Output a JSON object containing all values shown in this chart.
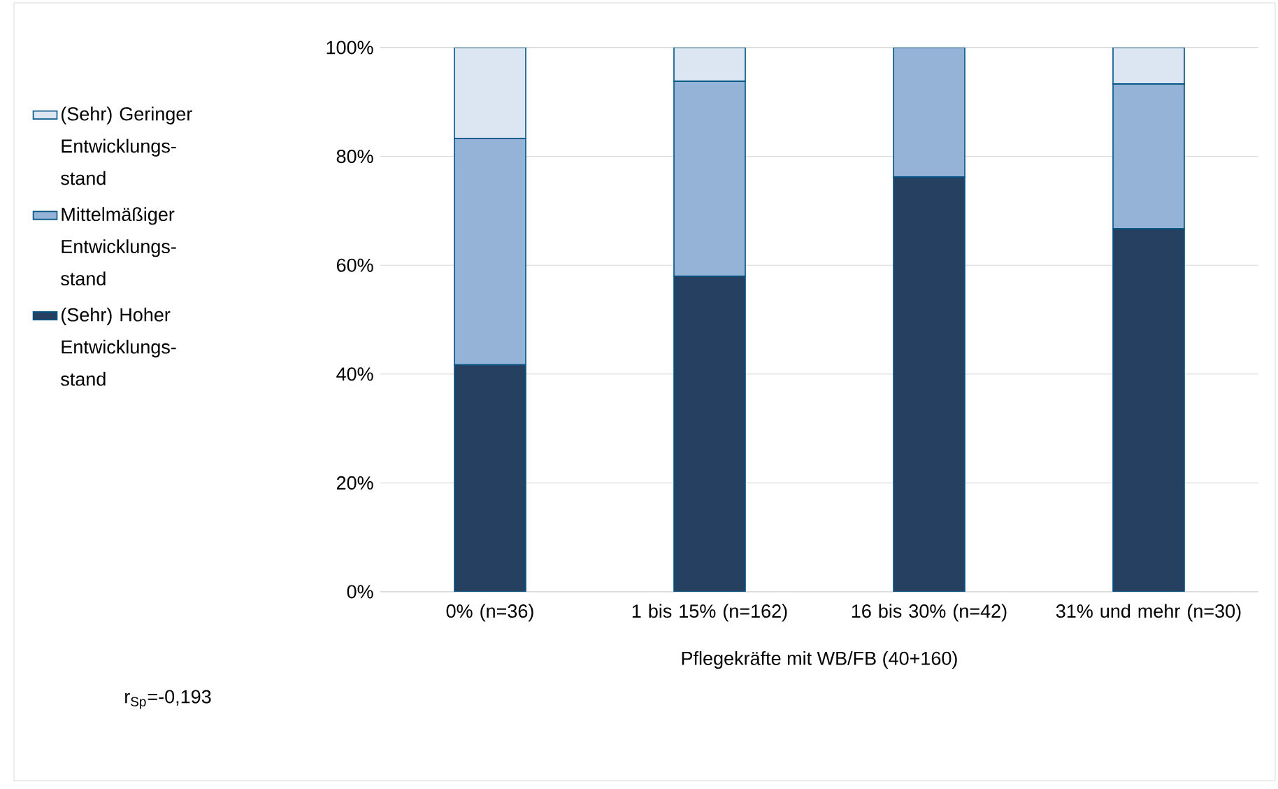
{
  "chart_data": {
    "type": "bar",
    "stacked": true,
    "categories": [
      "0% (n=36)",
      "1 bis 15% (n=162)",
      "16 bis 30% (n=42)",
      "31% und mehr (n=30)"
    ],
    "xlabel": "Pflegekräfte mit WB/FB (40+160)",
    "series": [
      {
        "name": "(Sehr) Hoher Entwicklungs-stand",
        "color": "#254061",
        "values": [
          41.7,
          58.0,
          76.2,
          66.7
        ]
      },
      {
        "name": "Mittelmäßiger Entwicklungs-stand",
        "color": "#95b3d7",
        "values": [
          41.6,
          35.8,
          23.8,
          26.6
        ]
      },
      {
        "name": "(Sehr) Geringer Entwicklungs-stand",
        "color": "#dce6f2",
        "values": [
          16.7,
          6.2,
          0,
          6.7
        ]
      }
    ],
    "ylim": [
      0,
      100
    ],
    "yticks": [
      {
        "value": 0,
        "label": "0%"
      },
      {
        "value": 20,
        "label": "20%"
      },
      {
        "value": 40,
        "label": "40%"
      },
      {
        "value": 60,
        "label": "60%"
      },
      {
        "value": 80,
        "label": "80%"
      },
      {
        "value": 100,
        "label": "100%"
      }
    ],
    "grid": "y",
    "legend": "left",
    "annotations": [
      "r$_{Sp}$=-0,193"
    ]
  }
}
